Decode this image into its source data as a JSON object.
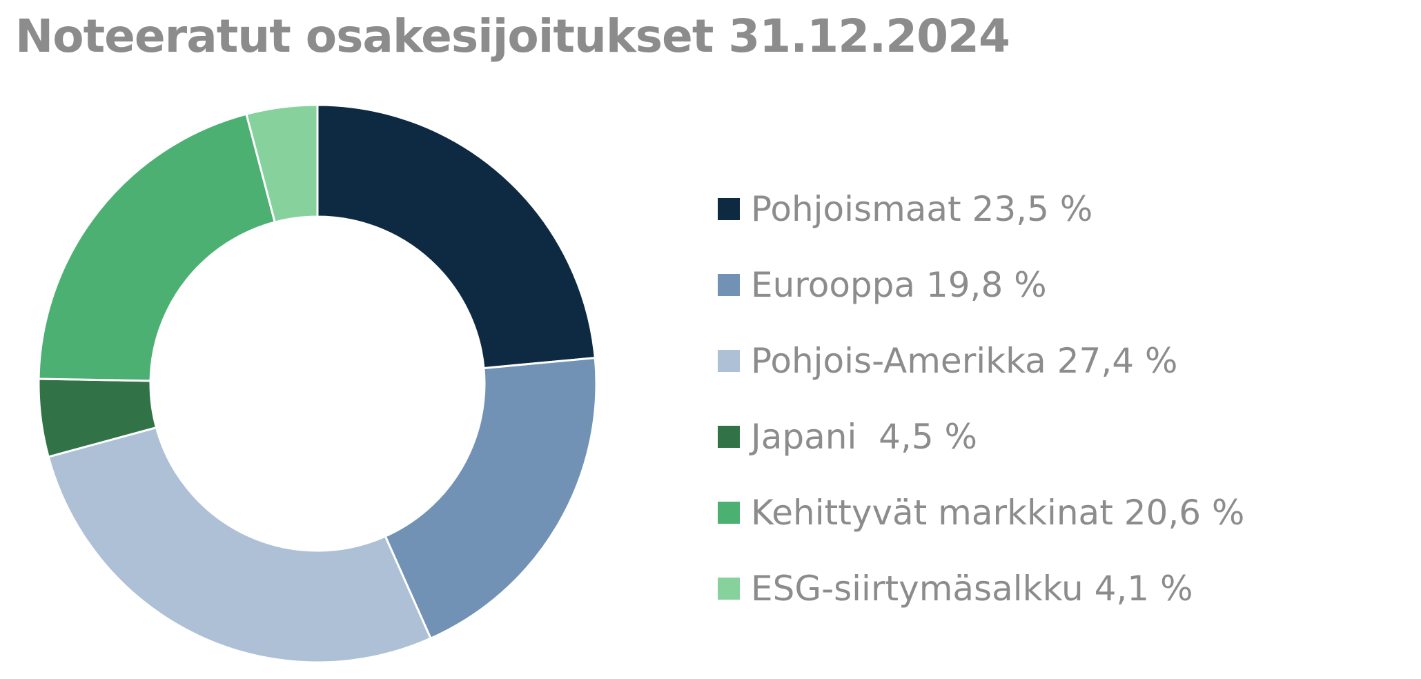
{
  "title": "Noteeratut osakesijoitukset 31.12.2024",
  "chart_data": {
    "type": "pie",
    "donut": true,
    "title": "Noteeratut osakesijoitukset 31.12.2024",
    "legend_position": "right",
    "series": [
      {
        "name": "Pohjoismaat",
        "value": 23.5,
        "label": "Pohjoismaat 23,5 %",
        "color": "#0d2a42"
      },
      {
        "name": "Eurooppa",
        "value": 19.8,
        "label": "Eurooppa 19,8 %",
        "color": "#7192b5"
      },
      {
        "name": "Pohjois-Amerikka",
        "value": 27.4,
        "label": "Pohjois-Amerikka 27,4 %",
        "color": "#aec0d6"
      },
      {
        "name": "Japani",
        "value": 4.5,
        "label": "Japani  4,5 %",
        "color": "#317347"
      },
      {
        "name": "Kehittyvät markkinat",
        "value": 20.6,
        "label": "Kehittyvät markkinat 20,6 %",
        "color": "#4bb072"
      },
      {
        "name": "ESG-siirtymäsalkku",
        "value": 4.1,
        "label": "ESG-siirtymäsalkku 4,1 %",
        "color": "#86d19c"
      }
    ]
  }
}
